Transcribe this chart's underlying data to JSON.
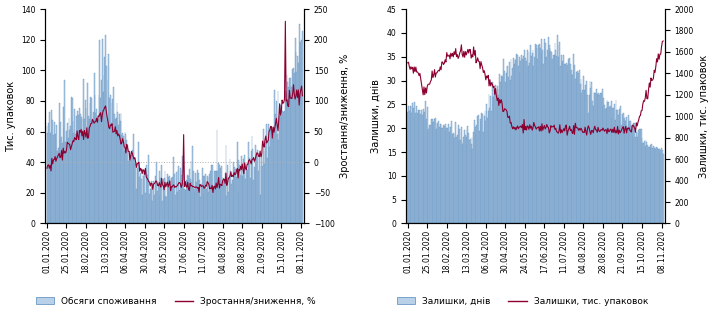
{
  "chart1": {
    "ylabel_left": "Тис. упаковок",
    "ylabel_right": "Зростання/зниження, %",
    "ylim_left": [
      0,
      140
    ],
    "ylim_right": [
      -100,
      250
    ],
    "yticks_left": [
      0,
      20,
      40,
      60,
      80,
      100,
      120,
      140
    ],
    "yticks_right": [
      -100,
      -50,
      0,
      50,
      100,
      150,
      200,
      250
    ],
    "bar_color": "#b8d0e8",
    "bar_edge_color": "#5588bb",
    "line_color": "#8b0030",
    "legend_bar": "Обсяги споживання",
    "legend_line": "Зростання/зниження, %"
  },
  "chart2": {
    "ylabel_left": "Залишки, днів",
    "ylabel_right": "Залишки, тис. упаковок",
    "ylim_left": [
      0,
      45
    ],
    "ylim_right": [
      0,
      2000
    ],
    "yticks_left": [
      0,
      5,
      10,
      15,
      20,
      25,
      30,
      35,
      40,
      45
    ],
    "yticks_right": [
      0,
      200,
      400,
      600,
      800,
      1000,
      1200,
      1400,
      1600,
      1800,
      2000
    ],
    "bar_color": "#b8d0e8",
    "bar_edge_color": "#5588bb",
    "line_color": "#8b0030",
    "legend_bar": "Залишки, днів",
    "legend_line": "Залишки, тис. упаковок"
  },
  "xtick_labels": [
    "01.01.2020",
    "25.01.2020",
    "18.02.2020",
    "13.03.2020",
    "06.04.2020",
    "30.04.2020",
    "24.05.2020",
    "17.06.2020",
    "11.07.2020",
    "04.08.2020",
    "28.08.2020",
    "21.09.2020",
    "15.10.2020",
    "08.11.2020"
  ],
  "background_color": "#ffffff",
  "tick_fontsize": 5.5,
  "label_fontsize": 7,
  "legend_fontsize": 6.5
}
